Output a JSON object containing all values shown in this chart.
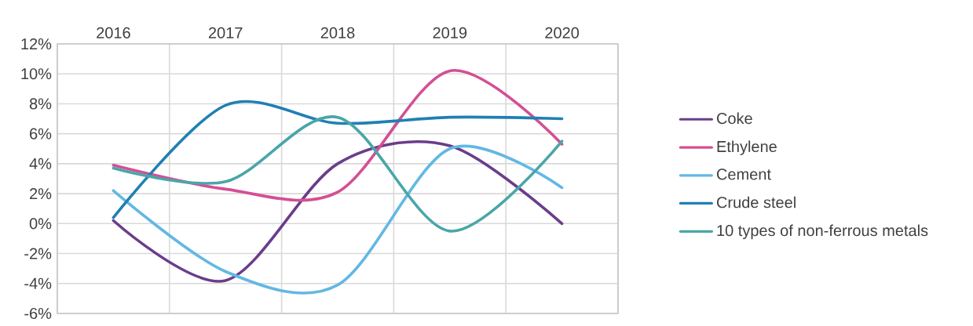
{
  "chart_data": {
    "type": "line",
    "categories": [
      "2016",
      "2017",
      "2018",
      "2019",
      "2020"
    ],
    "series": [
      {
        "name": "Coke",
        "color": "#6a3d8a",
        "values": [
          0.2,
          -3.8,
          4.0,
          5.2,
          0.0
        ]
      },
      {
        "name": "Ethylene",
        "color": "#d44f94",
        "values": [
          3.9,
          2.3,
          2.1,
          10.2,
          5.3
        ]
      },
      {
        "name": "Cement",
        "color": "#62b8e4",
        "values": [
          2.2,
          -3.2,
          -4.1,
          5.0,
          2.4
        ]
      },
      {
        "name": "Crude steel",
        "color": "#1f80b4",
        "values": [
          0.4,
          7.9,
          6.7,
          7.1,
          7.0
        ]
      },
      {
        "name": "10 types of non-ferrous metals",
        "color": "#4aa6a8",
        "values": [
          3.7,
          2.8,
          7.1,
          -0.5,
          5.5
        ]
      }
    ],
    "ylim": [
      -6,
      12
    ],
    "yticks": [
      {
        "value": -6,
        "label": "-6%"
      },
      {
        "value": -4,
        "label": "-4%"
      },
      {
        "value": -2,
        "label": "-2%"
      },
      {
        "value": 0,
        "label": "0%"
      },
      {
        "value": 2,
        "label": "2%"
      },
      {
        "value": 4,
        "label": "4%"
      },
      {
        "value": 6,
        "label": "6%"
      },
      {
        "value": 8,
        "label": "8%"
      },
      {
        "value": 10,
        "label": "10%"
      },
      {
        "value": 12,
        "label": "12%"
      }
    ],
    "grid": true,
    "legend": "right"
  }
}
